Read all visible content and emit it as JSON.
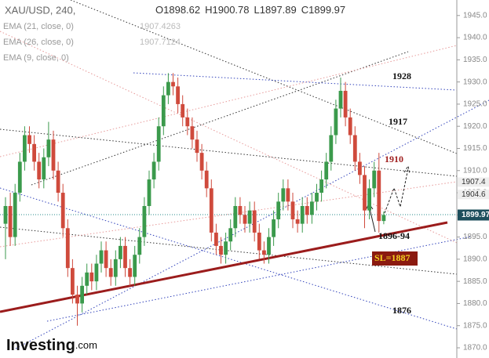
{
  "chart_data": {
    "type": "candlestick",
    "open": [
      1898,
      1902,
      1895,
      1905,
      1912,
      1918,
      1916,
      1912,
      1908,
      1913,
      1917,
      1910,
      1905,
      1897,
      1888,
      1882,
      1880,
      1884,
      1887,
      1885,
      1889,
      1892,
      1888,
      1886,
      1890,
      1893,
      1888,
      1886,
      1891,
      1895,
      1902,
      1908,
      1912,
      1920,
      1927,
      1930,
      1929,
      1925,
      1922,
      1920,
      1917,
      1914,
      1910,
      1906,
      1896,
      1893,
      1891,
      1894,
      1897,
      1902,
      1900,
      1898,
      1901,
      1896,
      1892,
      1891,
      1895,
      1899,
      1903,
      1906,
      1903,
      1899,
      1898,
      1902,
      1900,
      1903,
      1905,
      1908,
      1912,
      1918,
      1924,
      1928,
      1922,
      1918,
      1912,
      1909,
      1901,
      1906,
      1910,
      1898.62
    ],
    "high": [
      1904,
      1905,
      1907,
      1914,
      1920,
      1920,
      1918,
      1914,
      1915,
      1921,
      1919,
      1912,
      1907,
      1899,
      1890,
      1884,
      1886,
      1889,
      1889,
      1891,
      1894,
      1894,
      1890,
      1892,
      1895,
      1895,
      1890,
      1893,
      1897,
      1904,
      1910,
      1914,
      1922,
      1929,
      1932,
      1932,
      1931,
      1927,
      1924,
      1922,
      1919,
      1916,
      1912,
      1908,
      1898,
      1895,
      1896,
      1899,
      1904,
      1904,
      1902,
      1903,
      1903,
      1898,
      1894,
      1897,
      1901,
      1905,
      1908,
      1908,
      1905,
      1901,
      1904,
      1904,
      1905,
      1907,
      1910,
      1914,
      1920,
      1926,
      1931,
      1930,
      1924,
      1920,
      1914,
      1911,
      1908,
      1912,
      1914,
      1900.78
    ],
    "low": [
      1890,
      1893,
      1893,
      1903,
      1910,
      1914,
      1910,
      1906,
      1906,
      1911,
      1908,
      1903,
      1895,
      1886,
      1880,
      1875,
      1878,
      1882,
      1883,
      1883,
      1887,
      1886,
      1884,
      1884,
      1888,
      1886,
      1884,
      1884,
      1889,
      1893,
      1900,
      1906,
      1910,
      1918,
      1925,
      1927,
      1923,
      1920,
      1918,
      1915,
      1912,
      1908,
      1904,
      1894,
      1891,
      1889,
      1889,
      1892,
      1895,
      1898,
      1896,
      1896,
      1894,
      1890,
      1889,
      1889,
      1893,
      1897,
      1901,
      1901,
      1897,
      1896,
      1896,
      1898,
      1898,
      1901,
      1903,
      1906,
      1910,
      1916,
      1922,
      1920,
      1916,
      1910,
      1907,
      1897,
      1899,
      1904,
      1896,
      1897.89
    ],
    "close": [
      1902,
      1895,
      1905,
      1912,
      1918,
      1916,
      1912,
      1908,
      1913,
      1917,
      1910,
      1905,
      1897,
      1888,
      1882,
      1880,
      1884,
      1887,
      1885,
      1889,
      1892,
      1888,
      1886,
      1890,
      1893,
      1888,
      1886,
      1891,
      1895,
      1902,
      1908,
      1912,
      1920,
      1927,
      1930,
      1929,
      1925,
      1922,
      1920,
      1917,
      1914,
      1910,
      1906,
      1896,
      1893,
      1891,
      1894,
      1897,
      1902,
      1900,
      1898,
      1901,
      1896,
      1892,
      1891,
      1895,
      1899,
      1903,
      1906,
      1903,
      1899,
      1898,
      1902,
      1900,
      1903,
      1905,
      1908,
      1912,
      1918,
      1924,
      1928,
      1922,
      1918,
      1912,
      1909,
      1901,
      1906,
      1910,
      1898.62,
      1899.97
    ],
    "up_color": "#3b9a4c",
    "down_color": "#cf4a3c",
    "ylim": [
      1867.7,
      1948.5
    ],
    "yticks": [
      {
        "value": 1870,
        "label": "1870.0"
      },
      {
        "value": 1875,
        "label": "1875.0"
      },
      {
        "value": 1880,
        "label": "1880.0"
      },
      {
        "value": 1885,
        "label": "1885.0"
      },
      {
        "value": 1890,
        "label": "1890.0"
      },
      {
        "value": 1895,
        "label": "1895.0"
      },
      {
        "value": 1900,
        "label": "1900.0"
      },
      {
        "value": 1905,
        "label": "1905.0"
      },
      {
        "value": 1910,
        "label": "1910.0"
      },
      {
        "value": 1915,
        "label": "1915.0"
      },
      {
        "value": 1920,
        "label": "1920.0"
      },
      {
        "value": 1925,
        "label": "1925.0"
      },
      {
        "value": 1930,
        "label": "1930.0"
      },
      {
        "value": 1935,
        "label": "1935.0"
      },
      {
        "value": 1940,
        "label": "1940.0"
      },
      {
        "value": 1945,
        "label": "1945.0"
      }
    ],
    "price_labels": [
      1907.4,
      1904.6
    ],
    "last_price": 1899.97
  },
  "header": {
    "symbol": "XAU/USD, 240,",
    "ohlc": [
      {
        "label": "O",
        "value": 1898.62
      },
      {
        "label": "H",
        "value": 1900.78
      },
      {
        "label": "L",
        "value": 1897.89
      },
      {
        "label": "C",
        "value": 1899.97
      }
    ]
  },
  "indicators": [
    {
      "name": "EMA (21, close, 0)",
      "value": 1907.4263
    },
    {
      "name": "EMA (26, close, 0)",
      "value": 1907.7124
    },
    {
      "name": "EMA (9, close, 0)"
    }
  ],
  "annotations": [
    "1928",
    "1917",
    "1910",
    "1896-94",
    "SL=1887",
    "1876"
  ],
  "logo": {
    "name": "Investing",
    "suffix": ".com"
  }
}
